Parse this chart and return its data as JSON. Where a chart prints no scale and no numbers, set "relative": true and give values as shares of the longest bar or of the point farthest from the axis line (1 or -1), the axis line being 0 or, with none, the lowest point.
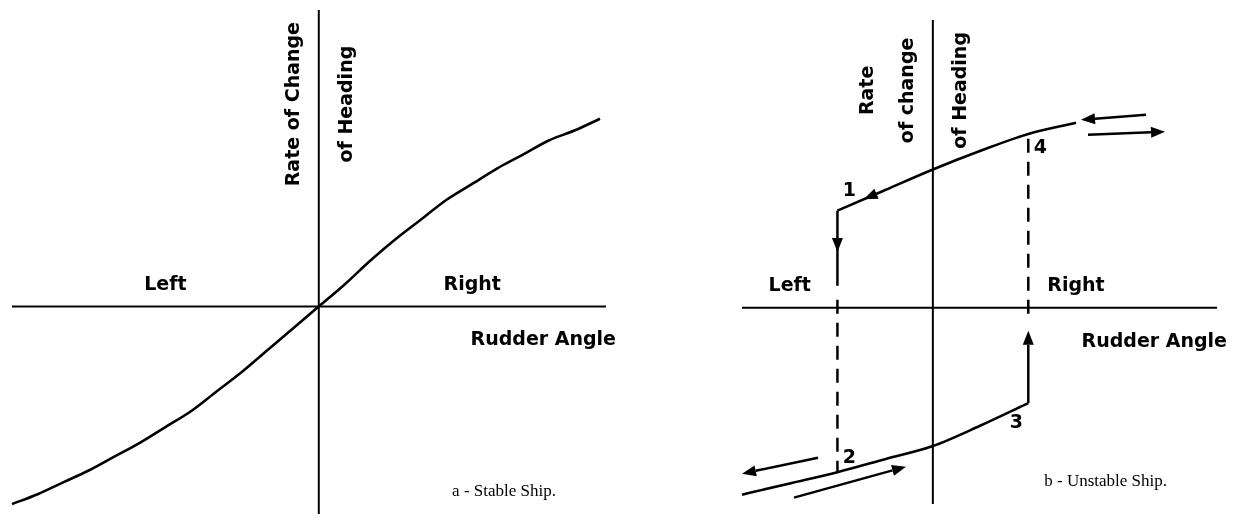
{
  "chart_data": [
    {
      "type": "line",
      "xlabel": "Rudder Angle",
      "ylabel": "Rate of Change\nof Heading",
      "relative": true,
      "categories": [
        null,
        null,
        null,
        null,
        null,
        null,
        "Left",
        null,
        null,
        null,
        null,
        null,
        null,
        null,
        null,
        null,
        null,
        null,
        "Right",
        null,
        null,
        null,
        null,
        null
      ],
      "series": [
        {
          "color": "#000000",
          "values": [
            -1,
            -0.95,
            -0.89,
            -0.83,
            -0.76,
            -0.69,
            -0.61,
            -0.53,
            -0.43,
            -0.33,
            -0.22,
            -0.11,
            0,
            0.11,
            0.23,
            0.34,
            0.44,
            0.54,
            0.62,
            0.7,
            0.77,
            0.84,
            0.89,
            0.95
          ]
        }
      ],
      "annotations": [
        "a - Stable Ship."
      ]
    },
    {
      "type": "line",
      "xlabel": "Rudder Angle",
      "ylabel": "Rate\nof change\nof Heading",
      "relative": true,
      "categories": [
        null,
        "Left",
        null,
        null,
        null,
        null,
        null,
        "Right"
      ],
      "series": [
        {
          "color": "#000000",
          "values": [
            null,
            null,
            0.52,
            0.63,
            0.74,
            0.84,
            0.93,
            0.99
          ]
        },
        {
          "color": "#000000",
          "values": [
            -1,
            -0.94,
            -0.88,
            -0.81,
            -0.74,
            -0.63,
            -0.51,
            null
          ]
        }
      ],
      "annotations": [
        "b - Unstable Ship.",
        {
          "text": "1",
          "y": 0.52
        },
        {
          "text": "2",
          "y": -0.88
        },
        {
          "text": "3",
          "y": -0.51
        },
        {
          "text": "4",
          "y": 0.93
        }
      ]
    }
  ]
}
